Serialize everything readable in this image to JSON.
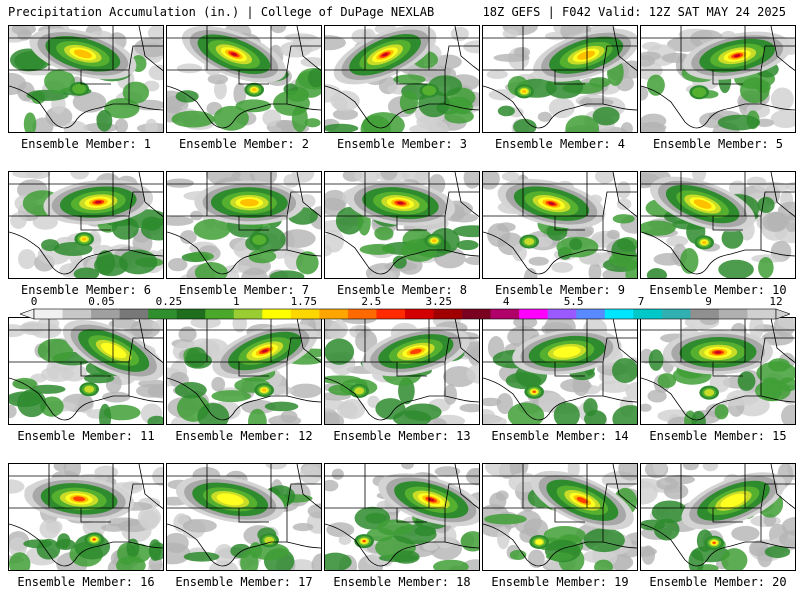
{
  "header": {
    "left": "Precipitation Accumulation (in.) | College of DuPage NEXLAB",
    "right": "18Z GEFS | F042 Valid: 12Z SAT MAY 24 2025"
  },
  "colorbar": {
    "labels": [
      "0",
      "0.05",
      "0.25",
      "1",
      "1.75",
      "2.5",
      "3.25",
      "4",
      "5.5",
      "7",
      "9",
      "12"
    ],
    "colors": [
      "#f0f0f0",
      "#c8c8c8",
      "#a0a0a0",
      "#787878",
      "#2f8f2f",
      "#1e6e1e",
      "#4aa82a",
      "#9acd32",
      "#ffff00",
      "#ffd700",
      "#ffa500",
      "#ff6a00",
      "#ff2a00",
      "#d40000",
      "#a00000",
      "#7a0022",
      "#b0006a",
      "#ff00ff",
      "#9a5aff",
      "#5a8aff",
      "#00e5ff",
      "#00c8c8",
      "#30b0b0",
      "#909090",
      "#b0b0b0",
      "#d0d0d0"
    ]
  },
  "members": [
    {
      "label": "Ensemble Member: 1"
    },
    {
      "label": "Ensemble Member: 2"
    },
    {
      "label": "Ensemble Member: 3"
    },
    {
      "label": "Ensemble Member: 4"
    },
    {
      "label": "Ensemble Member: 5"
    },
    {
      "label": "Ensemble Member: 6"
    },
    {
      "label": "Ensemble Member: 7"
    },
    {
      "label": "Ensemble Member: 8"
    },
    {
      "label": "Ensemble Member: 9"
    },
    {
      "label": "Ensemble Member: 10"
    },
    {
      "label": "Ensemble Member: 11"
    },
    {
      "label": "Ensemble Member: 12"
    },
    {
      "label": "Ensemble Member: 13"
    },
    {
      "label": "Ensemble Member: 14"
    },
    {
      "label": "Ensemble Member: 15"
    },
    {
      "label": "Ensemble Member: 16"
    },
    {
      "label": "Ensemble Member: 17"
    },
    {
      "label": "Ensemble Member: 18"
    },
    {
      "label": "Ensemble Member: 19"
    },
    {
      "label": "Ensemble Member: 20"
    }
  ]
}
